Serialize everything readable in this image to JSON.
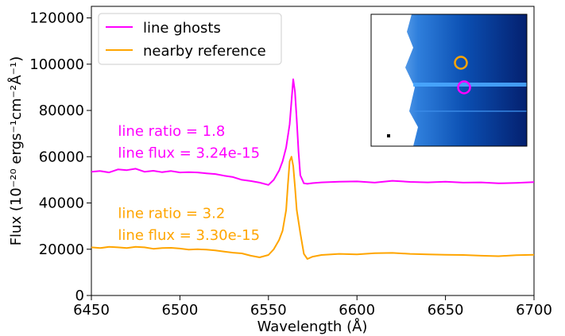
{
  "chart_data": {
    "type": "line",
    "xlabel": "Wavelength (Å)",
    "ylabel": "Flux (10⁻²⁰ ergs⁻¹cm⁻²Å⁻¹)",
    "xlim": [
      6450,
      6700
    ],
    "ylim": [
      0,
      125000
    ],
    "x_ticks": [
      "6450",
      "6500",
      "6550",
      "6600",
      "6650",
      "6700"
    ],
    "y_ticks": [
      "0",
      "20000",
      "40000",
      "60000",
      "80000",
      "100000",
      "120000"
    ],
    "legend_position": "top-left",
    "series": [
      {
        "name": "line ghosts",
        "color": "#ff00ff",
        "x": [
          6450,
          6455,
          6460,
          6465,
          6470,
          6475,
          6480,
          6485,
          6490,
          6495,
          6500,
          6505,
          6510,
          6515,
          6520,
          6525,
          6530,
          6535,
          6540,
          6545,
          6550,
          6553,
          6556,
          6558,
          6560,
          6562,
          6563,
          6564,
          6565,
          6566,
          6567,
          6568,
          6570,
          6572,
          6575,
          6580,
          6590,
          6600,
          6610,
          6620,
          6630,
          6640,
          6650,
          6660,
          6670,
          6680,
          6690,
          6700
        ],
        "y": [
          53500,
          53800,
          53200,
          54500,
          54200,
          54800,
          53500,
          53900,
          53300,
          53800,
          53200,
          53300,
          53200,
          52800,
          52500,
          51800,
          51200,
          50000,
          49500,
          48800,
          47800,
          50000,
          54000,
          58000,
          64000,
          74000,
          84000,
          93500,
          88000,
          76000,
          62000,
          52000,
          48500,
          48300,
          48600,
          48900,
          49200,
          49300,
          48800,
          49600,
          49100,
          48900,
          49200,
          48800,
          48900,
          48500,
          48700,
          49000
        ]
      },
      {
        "name": "nearby reference",
        "color": "#ffa500",
        "x": [
          6450,
          6455,
          6460,
          6465,
          6470,
          6475,
          6480,
          6485,
          6490,
          6495,
          6500,
          6505,
          6510,
          6515,
          6520,
          6525,
          6530,
          6535,
          6540,
          6545,
          6550,
          6553,
          6556,
          6558,
          6560,
          6561,
          6562,
          6563,
          6564,
          6565,
          6566,
          6568,
          6570,
          6572,
          6575,
          6580,
          6590,
          6600,
          6610,
          6620,
          6630,
          6640,
          6650,
          6660,
          6670,
          6680,
          6690,
          6700
        ],
        "y": [
          20800,
          20500,
          21000,
          20800,
          20500,
          21000,
          20800,
          20200,
          20500,
          20600,
          20300,
          19800,
          20000,
          19800,
          19500,
          19000,
          18500,
          18200,
          17200,
          16500,
          17500,
          20000,
          24000,
          28000,
          37000,
          48000,
          58000,
          60000,
          56000,
          47000,
          37000,
          27000,
          18000,
          15800,
          16800,
          17500,
          18000,
          17800,
          18300,
          18400,
          18000,
          17800,
          17600,
          17500,
          17200,
          17000,
          17400,
          17600
        ]
      }
    ],
    "annotations": [
      {
        "text": "line ratio = 1.8",
        "color": "#ff00ff",
        "x": 6465,
        "y": 69000
      },
      {
        "text": "line flux = 3.24e-15",
        "color": "#ff00ff",
        "x": 6465,
        "y": 59500
      },
      {
        "text": "line ratio = 3.2",
        "color": "#ffa500",
        "x": 6465,
        "y": 33500
      },
      {
        "text": "line flux = 3.30e-15",
        "color": "#ffa500",
        "x": 6465,
        "y": 24000
      }
    ],
    "inset": {
      "type": "image-thumbnail",
      "position": "top-right",
      "colormap": "blues",
      "markers": [
        {
          "shape": "circle",
          "color": "#ffa500"
        },
        {
          "shape": "circle",
          "color": "#ff00ff"
        }
      ]
    }
  }
}
